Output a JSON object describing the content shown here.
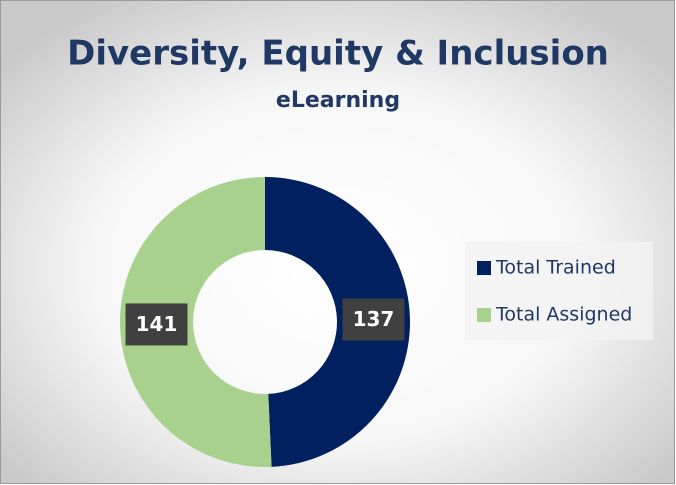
{
  "chart_data": {
    "type": "donut",
    "title": "Diversity, Equity & Inclusion",
    "subtitle": "eLearning",
    "categories": [
      "Total Trained",
      "Total Assigned"
    ],
    "values": [
      137,
      141
    ],
    "colors": [
      "#002060",
      "#a9d18e"
    ],
    "legend": "right"
  }
}
